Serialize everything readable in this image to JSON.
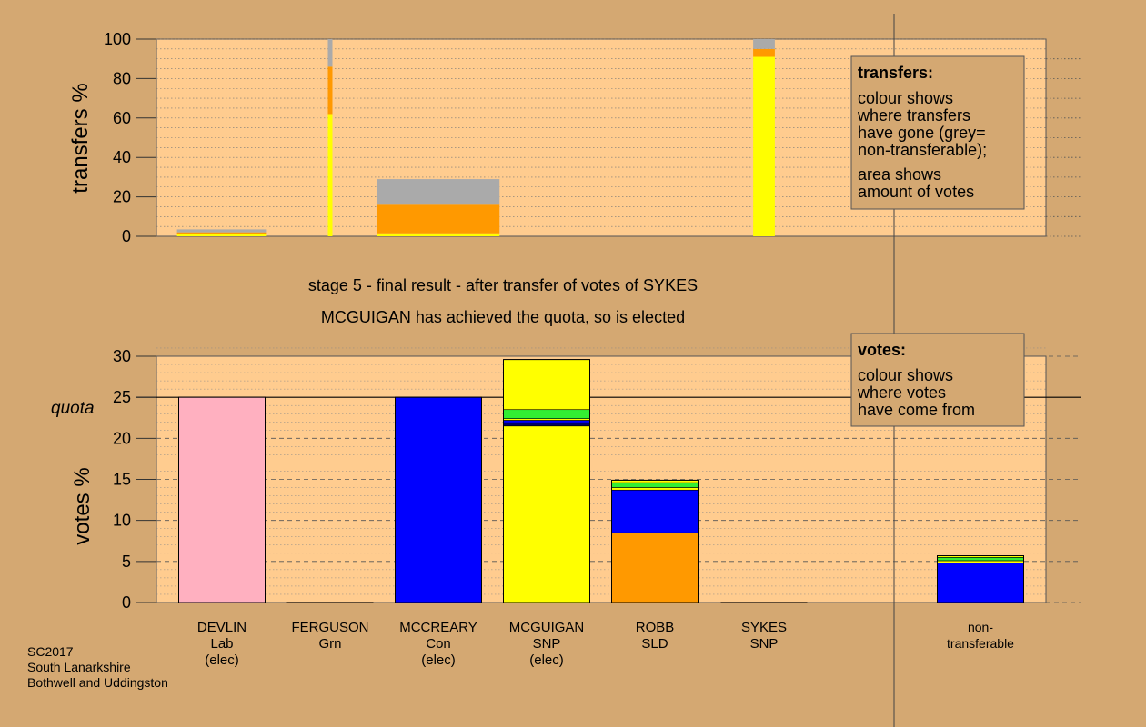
{
  "colors": {
    "background": "#d4a872",
    "plot_bg": "#ffcc8f",
    "grey": "#aaaaaa",
    "SNP": "#ffff00",
    "SLD": "#ff9900",
    "Con": "#0000ff",
    "Lab": "#ffb0c0",
    "Grn": "#33ee33",
    "navy": "#000066"
  },
  "captions": {
    "stage_line": "stage 5 - final result - after transfer of votes of SYKES",
    "result_line": "MCGUIGAN has achieved the quota, so is elected"
  },
  "footer": {
    "line1": "SC2017",
    "line2": "South Lanarkshire",
    "line3": "Bothwell and Uddingston"
  },
  "chart_data": [
    {
      "type": "bar",
      "stacked": true,
      "ylabel": "transfers %",
      "ylim": [
        0,
        100
      ],
      "yticks": [
        0,
        20,
        40,
        60,
        80,
        100
      ],
      "grid": true,
      "legend": {
        "title": "transfers:",
        "lines1": [
          "colour shows",
          "where transfers",
          "have gone (grey=",
          "non-transferable);"
        ],
        "lines2": [
          "area shows",
          "amount of votes"
        ]
      },
      "series": [
        {
          "name": "DEVLIN",
          "width_votes_pct": 8.3,
          "segments": [
            {
              "party": "SNP",
              "value": 1
            },
            {
              "party": "SLD",
              "value": 1
            },
            {
              "party": "grey",
              "value": 1.5
            }
          ]
        },
        {
          "name": "FERGUSON",
          "width_votes_pct": 0.4,
          "segments": [
            {
              "party": "SNP",
              "value": 62
            },
            {
              "party": "SLD",
              "value": 24
            },
            {
              "party": "grey",
              "value": 14
            }
          ]
        },
        {
          "name": "MCCREARY",
          "width_votes_pct": 11.3,
          "segments": [
            {
              "party": "SNP",
              "value": 1.5
            },
            {
              "party": "SLD",
              "value": 14.5
            },
            {
              "party": "grey",
              "value": 13
            }
          ]
        },
        {
          "name": "SYKES",
          "width_votes_pct": 2.0,
          "segments": [
            {
              "party": "SNP",
              "value": 91
            },
            {
              "party": "SLD",
              "value": 4
            },
            {
              "party": "grey",
              "value": 5
            }
          ]
        }
      ]
    },
    {
      "type": "bar",
      "stacked": true,
      "ylabel": "votes %",
      "ylim": [
        0,
        30
      ],
      "yticks": [
        0,
        5,
        10,
        15,
        20,
        25,
        30
      ],
      "quota": {
        "label": "quota",
        "value": 25
      },
      "grid": true,
      "legend": {
        "title": "votes:",
        "lines": [
          "colour shows",
          "where votes",
          "have come from"
        ]
      },
      "categories": [
        {
          "name": "DEVLIN",
          "party": "Lab",
          "status": "(elec)"
        },
        {
          "name": "FERGUSON",
          "party": "Grn",
          "status": ""
        },
        {
          "name": "MCCREARY",
          "party": "Con",
          "status": "(elec)"
        },
        {
          "name": "MCGUIGAN",
          "party": "SNP",
          "status": "(elec)"
        },
        {
          "name": "ROBB",
          "party": "SLD",
          "status": ""
        },
        {
          "name": "SYKES",
          "party": "SNP",
          "status": ""
        },
        {
          "name": "non-",
          "party": "transferable",
          "status": ""
        }
      ],
      "series": [
        {
          "name": "DEVLIN",
          "segments": [
            {
              "party": "Lab",
              "value": 25
            }
          ]
        },
        {
          "name": "FERGUSON",
          "segments": []
        },
        {
          "name": "MCCREARY",
          "segments": [
            {
              "party": "Con",
              "value": 25
            }
          ]
        },
        {
          "name": "MCGUIGAN",
          "segments": [
            {
              "party": "SNP",
              "value": 21.5
            },
            {
              "party": "navy",
              "value": 0.4
            },
            {
              "party": "Con",
              "value": 0.3
            },
            {
              "party": "SNP",
              "value": 0.2
            },
            {
              "party": "Grn",
              "value": 1.1
            },
            {
              "party": "SNP",
              "value": 6.1
            }
          ]
        },
        {
          "name": "ROBB",
          "segments": [
            {
              "party": "SLD",
              "value": 8.5
            },
            {
              "party": "Con",
              "value": 5.2
            },
            {
              "party": "SNP",
              "value": 0.3
            },
            {
              "party": "Grn",
              "value": 0.6
            },
            {
              "party": "SNP",
              "value": 0.3
            }
          ]
        },
        {
          "name": "SYKES",
          "segments": []
        },
        {
          "name": "non-transferable",
          "segments": [
            {
              "party": "Con",
              "value": 4.8
            },
            {
              "party": "SNP",
              "value": 0.3
            },
            {
              "party": "Grn",
              "value": 0.4
            },
            {
              "party": "SNP",
              "value": 0.2
            }
          ]
        }
      ]
    }
  ]
}
